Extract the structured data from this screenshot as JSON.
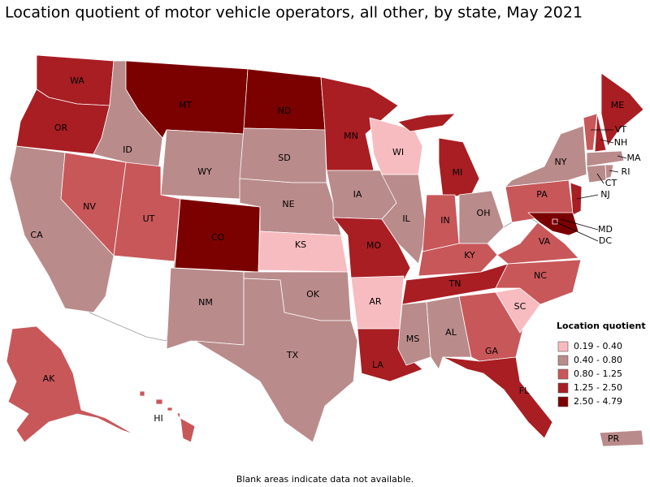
{
  "title": "Location quotient of motor vehicle operators, all other, by state, May 2021",
  "footnote": "Blank areas indicate data not available.",
  "legend": {
    "title": "Location quotient",
    "items": [
      {
        "label": "0.19 - 0.40",
        "color": "#f7bcc0"
      },
      {
        "label": "0.40 - 0.80",
        "color": "#ba8b8b"
      },
      {
        "label": "0.80 - 1.25",
        "color": "#c8575a"
      },
      {
        "label": "1.25 - 2.50",
        "color": "#a81e23"
      },
      {
        "label": "2.50 - 4.79",
        "color": "#7b0000"
      }
    ]
  },
  "states": [
    {
      "abbr": "WA",
      "color": "#a81e23"
    },
    {
      "abbr": "OR",
      "color": "#a81e23"
    },
    {
      "abbr": "CA",
      "color": "#ba8b8b"
    },
    {
      "abbr": "NV",
      "color": "#c8575a"
    },
    {
      "abbr": "ID",
      "color": "#ba8b8b"
    },
    {
      "abbr": "MT",
      "color": "#7b0000"
    },
    {
      "abbr": "WY",
      "color": "#ba8b8b"
    },
    {
      "abbr": "UT",
      "color": "#c8575a"
    },
    {
      "abbr": "CO",
      "color": "#7b0000"
    },
    {
      "abbr": "NM",
      "color": "#ba8b8b"
    },
    {
      "abbr": "ND",
      "color": "#7b0000"
    },
    {
      "abbr": "SD",
      "color": "#ba8b8b"
    },
    {
      "abbr": "NE",
      "color": "#ba8b8b"
    },
    {
      "abbr": "KS",
      "color": "#f7bcc0"
    },
    {
      "abbr": "OK",
      "color": "#ba8b8b"
    },
    {
      "abbr": "TX",
      "color": "#ba8b8b"
    },
    {
      "abbr": "MN",
      "color": "#a81e23"
    },
    {
      "abbr": "IA",
      "color": "#ba8b8b"
    },
    {
      "abbr": "MO",
      "color": "#a81e23"
    },
    {
      "abbr": "AR",
      "color": "#f7bcc0"
    },
    {
      "abbr": "LA",
      "color": "#a81e23"
    },
    {
      "abbr": "WI",
      "color": "#f7bcc0"
    },
    {
      "abbr": "IL",
      "color": "#ba8b8b"
    },
    {
      "abbr": "MI",
      "color": "#a81e23"
    },
    {
      "abbr": "IN",
      "color": "#c8575a"
    },
    {
      "abbr": "OH",
      "color": "#ba8b8b"
    },
    {
      "abbr": "KY",
      "color": "#c8575a"
    },
    {
      "abbr": "TN",
      "color": "#a81e23"
    },
    {
      "abbr": "MS",
      "color": "#ba8b8b"
    },
    {
      "abbr": "AL",
      "color": "#ba8b8b"
    },
    {
      "abbr": "GA",
      "color": "#c8575a"
    },
    {
      "abbr": "FL",
      "color": "#a81e23"
    },
    {
      "abbr": "SC",
      "color": "#f7bcc0"
    },
    {
      "abbr": "NC",
      "color": "#c8575a"
    },
    {
      "abbr": "VA",
      "color": "#c8575a"
    },
    {
      "abbr": "PA",
      "color": "#c8575a"
    },
    {
      "abbr": "NY",
      "color": "#ba8b8b"
    },
    {
      "abbr": "NJ",
      "color": "#a81e23"
    },
    {
      "abbr": "MD",
      "color": "#7b0000"
    },
    {
      "abbr": "DC",
      "color": "#7b0000"
    },
    {
      "abbr": "VT",
      "color": "#c8575a"
    },
    {
      "abbr": "NH",
      "color": "#a81e23"
    },
    {
      "abbr": "ME",
      "color": "#a81e23"
    },
    {
      "abbr": "MA",
      "color": "#ba8b8b"
    },
    {
      "abbr": "CT",
      "color": "#ba8b8b"
    },
    {
      "abbr": "RI",
      "color": "#ba8b8b"
    },
    {
      "abbr": "AK",
      "color": "#c8575a"
    },
    {
      "abbr": "HI",
      "color": "#c8575a"
    },
    {
      "abbr": "PR",
      "color": "#ba8b8b"
    }
  ]
}
